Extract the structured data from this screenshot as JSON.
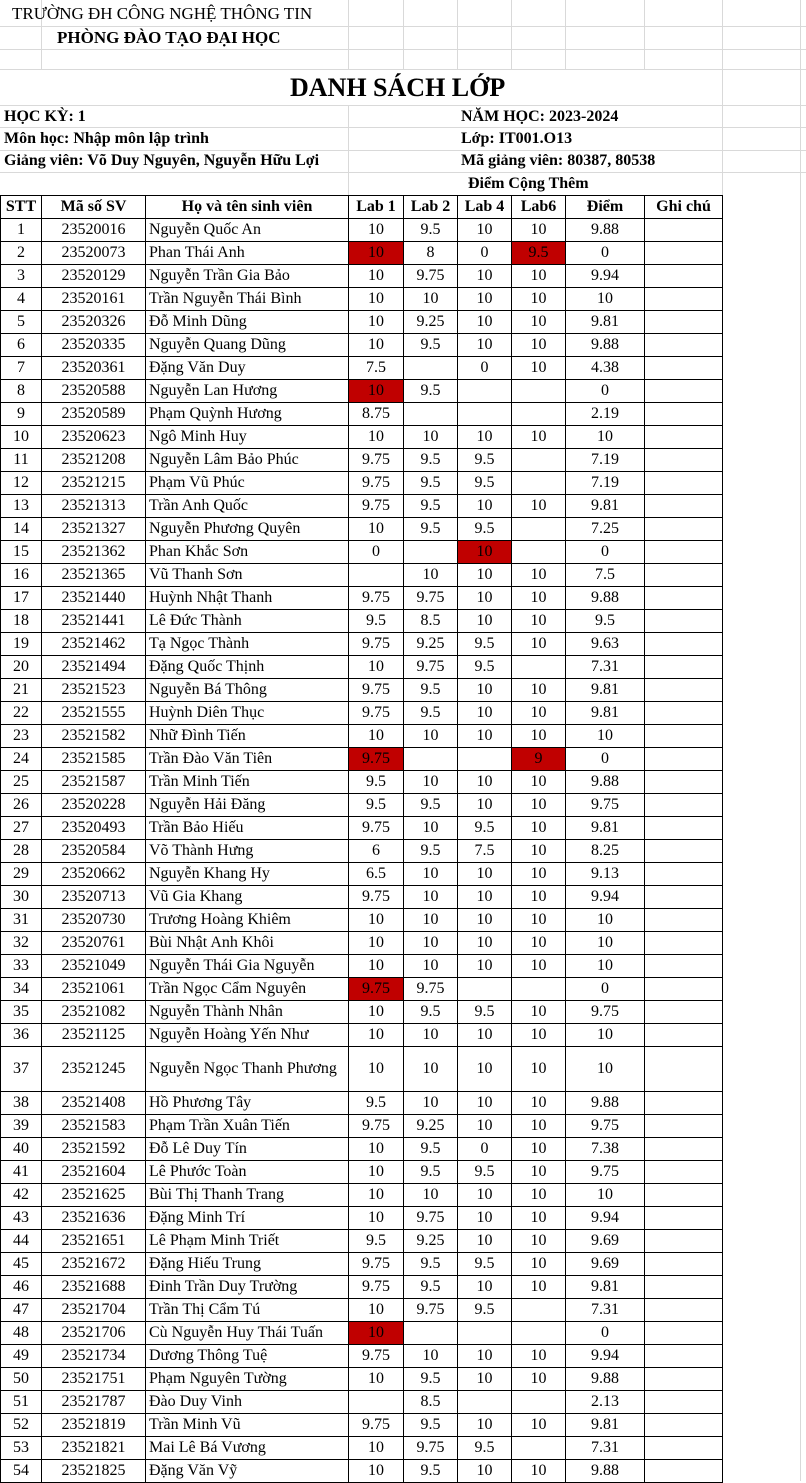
{
  "header": {
    "university": "TRƯỜNG ĐH CÔNG NGHỆ THÔNG TIN",
    "office": "PHÒNG ĐÀO TẠO ĐẠI HỌC",
    "title": "DANH SÁCH LỚP",
    "semester": "HỌC KỲ: 1",
    "year": "NĂM HỌC: 2023-2024",
    "course": "Môn học: Nhập môn lập trình",
    "class": "Lớp: IT001.O13",
    "lecturers": "Giảng viên: Võ Duy Nguyên, Nguyễn Hữu Lợi",
    "lecturer_ids": "Mã giảng viên: 80387, 80538",
    "bonus": "Điểm Cộng Thêm"
  },
  "columns": [
    "STT",
    "Mã số SV",
    "Họ và tên sinh viên",
    "Lab 1",
    "Lab 2",
    "Lab 4",
    "Lab6",
    "Điểm",
    "Ghi chú"
  ],
  "highlight_color": "#c00000",
  "rows": [
    {
      "stt": "1",
      "id": "23520016",
      "name": "Nguyễn Quốc An",
      "lab1": "10",
      "lab2": "9.5",
      "lab4": "10",
      "lab6": "10",
      "score": "9.88",
      "note": "",
      "red": []
    },
    {
      "stt": "2",
      "id": "23520073",
      "name": "Phan Thái Anh",
      "lab1": "10",
      "lab2": "8",
      "lab4": "0",
      "lab6": "9.5",
      "score": "0",
      "note": "",
      "red": [
        "lab1",
        "lab6"
      ]
    },
    {
      "stt": "3",
      "id": "23520129",
      "name": "Nguyễn Trần Gia Bảo",
      "lab1": "10",
      "lab2": "9.75",
      "lab4": "10",
      "lab6": "10",
      "score": "9.94",
      "note": "",
      "red": []
    },
    {
      "stt": "4",
      "id": "23520161",
      "name": "Trần Nguyễn Thái Bình",
      "lab1": "10",
      "lab2": "10",
      "lab4": "10",
      "lab6": "10",
      "score": "10",
      "note": "",
      "red": []
    },
    {
      "stt": "5",
      "id": "23520326",
      "name": "Đỗ Minh Dũng",
      "lab1": "10",
      "lab2": "9.25",
      "lab4": "10",
      "lab6": "10",
      "score": "9.81",
      "note": "",
      "red": []
    },
    {
      "stt": "6",
      "id": "23520335",
      "name": "Nguyễn Quang Dũng",
      "lab1": "10",
      "lab2": "9.5",
      "lab4": "10",
      "lab6": "10",
      "score": "9.88",
      "note": "",
      "red": []
    },
    {
      "stt": "7",
      "id": "23520361",
      "name": "Đặng Văn Duy",
      "lab1": "7.5",
      "lab2": "",
      "lab4": "0",
      "lab6": "10",
      "score": "4.38",
      "note": "",
      "red": []
    },
    {
      "stt": "8",
      "id": "23520588",
      "name": "Nguyễn Lan Hương",
      "lab1": "10",
      "lab2": "9.5",
      "lab4": "",
      "lab6": "",
      "score": "0",
      "note": "",
      "red": [
        "lab1"
      ]
    },
    {
      "stt": "9",
      "id": "23520589",
      "name": "Phạm Quỳnh Hương",
      "lab1": "8.75",
      "lab2": "",
      "lab4": "",
      "lab6": "",
      "score": "2.19",
      "note": "",
      "red": []
    },
    {
      "stt": "10",
      "id": "23520623",
      "name": "Ngô Minh Huy",
      "lab1": "10",
      "lab2": "10",
      "lab4": "10",
      "lab6": "10",
      "score": "10",
      "note": "",
      "red": []
    },
    {
      "stt": "11",
      "id": "23521208",
      "name": "Nguyễn Lâm Bảo Phúc",
      "lab1": "9.75",
      "lab2": "9.5",
      "lab4": "9.5",
      "lab6": "",
      "score": "7.19",
      "note": "",
      "red": []
    },
    {
      "stt": "12",
      "id": "23521215",
      "name": "Phạm Vũ Phúc",
      "lab1": "9.75",
      "lab2": "9.5",
      "lab4": "9.5",
      "lab6": "",
      "score": "7.19",
      "note": "",
      "red": []
    },
    {
      "stt": "13",
      "id": "23521313",
      "name": "Trần Anh Quốc",
      "lab1": "9.75",
      "lab2": "9.5",
      "lab4": "10",
      "lab6": "10",
      "score": "9.81",
      "note": "",
      "red": []
    },
    {
      "stt": "14",
      "id": "23521327",
      "name": "Nguyễn Phương Quyên",
      "lab1": "10",
      "lab2": "9.5",
      "lab4": "9.5",
      "lab6": "",
      "score": "7.25",
      "note": "",
      "red": []
    },
    {
      "stt": "15",
      "id": "23521362",
      "name": "Phan Khắc Sơn",
      "lab1": "0",
      "lab2": "",
      "lab4": "10",
      "lab6": "",
      "score": "0",
      "note": "",
      "red": [
        "lab4"
      ]
    },
    {
      "stt": "16",
      "id": "23521365",
      "name": "Vũ Thanh Sơn",
      "lab1": "",
      "lab2": "10",
      "lab4": "10",
      "lab6": "10",
      "score": "7.5",
      "note": "",
      "red": []
    },
    {
      "stt": "17",
      "id": "23521440",
      "name": "Huỳnh Nhật Thanh",
      "lab1": "9.75",
      "lab2": "9.75",
      "lab4": "10",
      "lab6": "10",
      "score": "9.88",
      "note": "",
      "red": []
    },
    {
      "stt": "18",
      "id": "23521441",
      "name": "Lê Đức Thành",
      "lab1": "9.5",
      "lab2": "8.5",
      "lab4": "10",
      "lab6": "10",
      "score": "9.5",
      "note": "",
      "red": []
    },
    {
      "stt": "19",
      "id": "23521462",
      "name": "Tạ Ngọc Thành",
      "lab1": "9.75",
      "lab2": "9.25",
      "lab4": "9.5",
      "lab6": "10",
      "score": "9.63",
      "note": "",
      "red": []
    },
    {
      "stt": "20",
      "id": "23521494",
      "name": "Đặng Quốc Thịnh",
      "lab1": "10",
      "lab2": "9.75",
      "lab4": "9.5",
      "lab6": "",
      "score": "7.31",
      "note": "",
      "red": []
    },
    {
      "stt": "21",
      "id": "23521523",
      "name": "Nguyễn Bá Thông",
      "lab1": "9.75",
      "lab2": "9.5",
      "lab4": "10",
      "lab6": "10",
      "score": "9.81",
      "note": "",
      "red": []
    },
    {
      "stt": "22",
      "id": "23521555",
      "name": "Huỳnh Diên Thục",
      "lab1": "9.75",
      "lab2": "9.5",
      "lab4": "10",
      "lab6": "10",
      "score": "9.81",
      "note": "",
      "red": []
    },
    {
      "stt": "23",
      "id": "23521582",
      "name": "Nhữ Đình Tiến",
      "lab1": "10",
      "lab2": "10",
      "lab4": "10",
      "lab6": "10",
      "score": "10",
      "note": "",
      "red": []
    },
    {
      "stt": "24",
      "id": "23521585",
      "name": "Trần Đào Văn Tiên",
      "lab1": "9.75",
      "lab2": "",
      "lab4": "",
      "lab6": "9",
      "score": "0",
      "note": "",
      "red": [
        "lab1",
        "lab6"
      ]
    },
    {
      "stt": "25",
      "id": "23521587",
      "name": "Trần Minh Tiến",
      "lab1": "9.5",
      "lab2": "10",
      "lab4": "10",
      "lab6": "10",
      "score": "9.88",
      "note": "",
      "red": []
    },
    {
      "stt": "26",
      "id": "23520228",
      "name": "Nguyễn Hải Đăng",
      "lab1": "9.5",
      "lab2": "9.5",
      "lab4": "10",
      "lab6": "10",
      "score": "9.75",
      "note": "",
      "red": []
    },
    {
      "stt": "27",
      "id": "23520493",
      "name": "Trần Bảo Hiếu",
      "lab1": "9.75",
      "lab2": "10",
      "lab4": "9.5",
      "lab6": "10",
      "score": "9.81",
      "note": "",
      "red": []
    },
    {
      "stt": "28",
      "id": "23520584",
      "name": "Võ Thành Hưng",
      "lab1": "6",
      "lab2": "9.5",
      "lab4": "7.5",
      "lab6": "10",
      "score": "8.25",
      "note": "",
      "red": []
    },
    {
      "stt": "29",
      "id": "23520662",
      "name": "Nguyễn Khang Hy",
      "lab1": "6.5",
      "lab2": "10",
      "lab4": "10",
      "lab6": "10",
      "score": "9.13",
      "note": "",
      "red": []
    },
    {
      "stt": "30",
      "id": "23520713",
      "name": "Vũ Gia Khang",
      "lab1": "9.75",
      "lab2": "10",
      "lab4": "10",
      "lab6": "10",
      "score": "9.94",
      "note": "",
      "red": []
    },
    {
      "stt": "31",
      "id": "23520730",
      "name": "Trương Hoàng Khiêm",
      "lab1": "10",
      "lab2": "10",
      "lab4": "10",
      "lab6": "10",
      "score": "10",
      "note": "",
      "red": []
    },
    {
      "stt": "32",
      "id": "23520761",
      "name": "Bùi Nhật Anh Khôi",
      "lab1": "10",
      "lab2": "10",
      "lab4": "10",
      "lab6": "10",
      "score": "10",
      "note": "",
      "red": []
    },
    {
      "stt": "33",
      "id": "23521049",
      "name": "Nguyễn Thái Gia Nguyễn",
      "lab1": "10",
      "lab2": "10",
      "lab4": "10",
      "lab6": "10",
      "score": "10",
      "note": "",
      "red": []
    },
    {
      "stt": "34",
      "id": "23521061",
      "name": "Trần Ngọc Cẩm Nguyên",
      "lab1": "9.75",
      "lab2": "9.75",
      "lab4": "",
      "lab6": "",
      "score": "0",
      "note": "",
      "red": [
        "lab1"
      ]
    },
    {
      "stt": "35",
      "id": "23521082",
      "name": "Nguyễn Thành Nhân",
      "lab1": "10",
      "lab2": "9.5",
      "lab4": "9.5",
      "lab6": "10",
      "score": "9.75",
      "note": "",
      "red": []
    },
    {
      "stt": "36",
      "id": "23521125",
      "name": "Nguyễn Hoàng Yến Như",
      "lab1": "10",
      "lab2": "10",
      "lab4": "10",
      "lab6": "10",
      "score": "10",
      "note": "",
      "red": []
    },
    {
      "stt": "37",
      "id": "23521245",
      "name": "Nguyễn Ngọc Thanh Phương",
      "lab1": "10",
      "lab2": "10",
      "lab4": "10",
      "lab6": "10",
      "score": "10",
      "note": "",
      "red": [],
      "tall": true
    },
    {
      "stt": "38",
      "id": "23521408",
      "name": "Hồ Phương Tây",
      "lab1": "9.5",
      "lab2": "10",
      "lab4": "10",
      "lab6": "10",
      "score": "9.88",
      "note": "",
      "red": []
    },
    {
      "stt": "39",
      "id": "23521583",
      "name": "Phạm Trần Xuân Tiến",
      "lab1": "9.75",
      "lab2": "9.25",
      "lab4": "10",
      "lab6": "10",
      "score": "9.75",
      "note": "",
      "red": []
    },
    {
      "stt": "40",
      "id": "23521592",
      "name": "Đỗ Lê Duy Tín",
      "lab1": "10",
      "lab2": "9.5",
      "lab4": "0",
      "lab6": "10",
      "score": "7.38",
      "note": "",
      "red": []
    },
    {
      "stt": "41",
      "id": "23521604",
      "name": "Lê Phước Toàn",
      "lab1": "10",
      "lab2": "9.5",
      "lab4": "9.5",
      "lab6": "10",
      "score": "9.75",
      "note": "",
      "red": []
    },
    {
      "stt": "42",
      "id": "23521625",
      "name": "Bùi Thị Thanh Trang",
      "lab1": "10",
      "lab2": "10",
      "lab4": "10",
      "lab6": "10",
      "score": "10",
      "note": "",
      "red": []
    },
    {
      "stt": "43",
      "id": "23521636",
      "name": "Đặng Minh Trí",
      "lab1": "10",
      "lab2": "9.75",
      "lab4": "10",
      "lab6": "10",
      "score": "9.94",
      "note": "",
      "red": []
    },
    {
      "stt": "44",
      "id": "23521651",
      "name": "Lê Phạm Minh Triết",
      "lab1": "9.5",
      "lab2": "9.25",
      "lab4": "10",
      "lab6": "10",
      "score": "9.69",
      "note": "",
      "red": []
    },
    {
      "stt": "45",
      "id": "23521672",
      "name": "Đặng Hiếu Trung",
      "lab1": "9.75",
      "lab2": "9.5",
      "lab4": "9.5",
      "lab6": "10",
      "score": "9.69",
      "note": "",
      "red": []
    },
    {
      "stt": "46",
      "id": "23521688",
      "name": "Đinh Trần Duy Trường",
      "lab1": "9.75",
      "lab2": "9.5",
      "lab4": "10",
      "lab6": "10",
      "score": "9.81",
      "note": "",
      "red": []
    },
    {
      "stt": "47",
      "id": "23521704",
      "name": "Trần Thị Cẩm Tú",
      "lab1": "10",
      "lab2": "9.75",
      "lab4": "9.5",
      "lab6": "",
      "score": "7.31",
      "note": "",
      "red": []
    },
    {
      "stt": "48",
      "id": "23521706",
      "name": "Cù Nguyễn Huy Thái Tuấn",
      "lab1": "10",
      "lab2": "",
      "lab4": "",
      "lab6": "",
      "score": "0",
      "note": "",
      "red": [
        "lab1"
      ]
    },
    {
      "stt": "49",
      "id": "23521734",
      "name": "Dương Thông Tuệ",
      "lab1": "9.75",
      "lab2": "10",
      "lab4": "10",
      "lab6": "10",
      "score": "9.94",
      "note": "",
      "red": []
    },
    {
      "stt": "50",
      "id": "23521751",
      "name": "Phạm Nguyên Tường",
      "lab1": "10",
      "lab2": "9.5",
      "lab4": "10",
      "lab6": "10",
      "score": "9.88",
      "note": "",
      "red": []
    },
    {
      "stt": "51",
      "id": "23521787",
      "name": "Đào Duy Vinh",
      "lab1": "",
      "lab2": "8.5",
      "lab4": "",
      "lab6": "",
      "score": "2.13",
      "note": "",
      "red": []
    },
    {
      "stt": "52",
      "id": "23521819",
      "name": "Trần Minh Vũ",
      "lab1": "9.75",
      "lab2": "9.5",
      "lab4": "10",
      "lab6": "10",
      "score": "9.81",
      "note": "",
      "red": []
    },
    {
      "stt": "53",
      "id": "23521821",
      "name": "Mai Lê Bá Vương",
      "lab1": "10",
      "lab2": "9.75",
      "lab4": "9.5",
      "lab6": "",
      "score": "7.31",
      "note": "",
      "red": []
    },
    {
      "stt": "54",
      "id": "23521825",
      "name": "Đặng Văn Vỹ",
      "lab1": "10",
      "lab2": "9.5",
      "lab4": "10",
      "lab6": "10",
      "score": "9.88",
      "note": "",
      "red": []
    }
  ]
}
